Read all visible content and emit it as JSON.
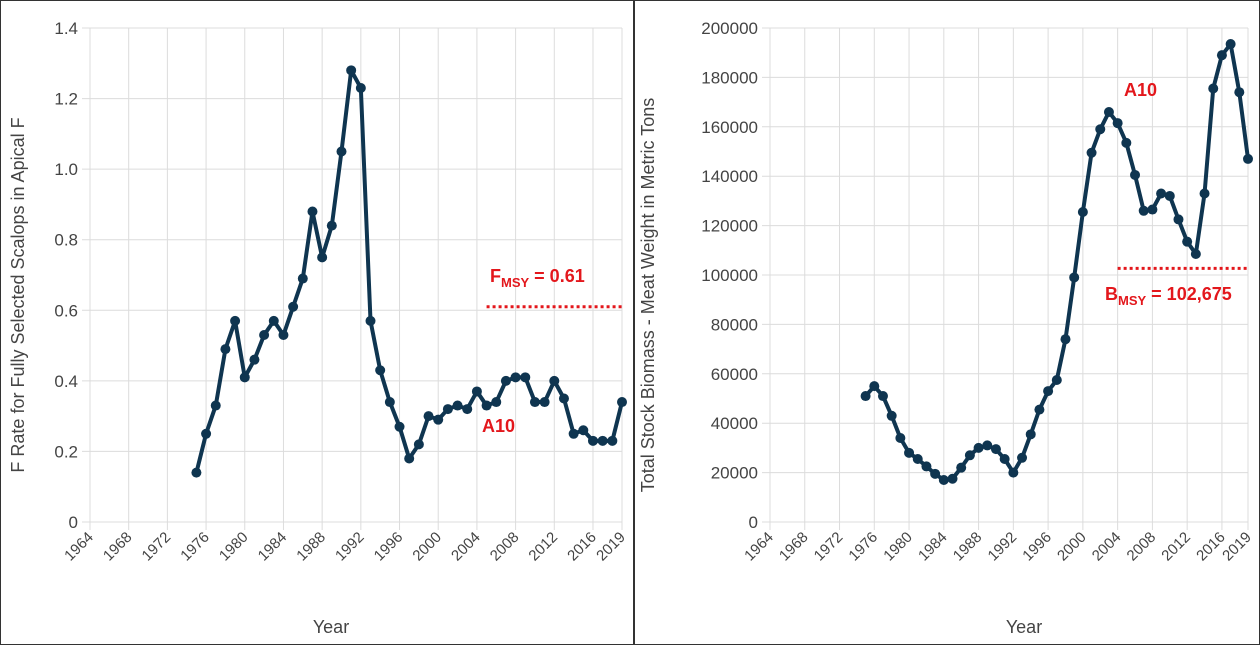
{
  "chart_data": [
    {
      "type": "line",
      "ylabel": "F Rate for Fully Selected Scalops in Apical F",
      "xlabel": "Year",
      "x": [
        1975,
        1976,
        1977,
        1978,
        1979,
        1980,
        1981,
        1982,
        1983,
        1984,
        1985,
        1986,
        1987,
        1988,
        1989,
        1990,
        1991,
        1992,
        1993,
        1994,
        1995,
        1996,
        1997,
        1998,
        1999,
        2000,
        2001,
        2002,
        2003,
        2004,
        2005,
        2006,
        2007,
        2008,
        2009,
        2010,
        2011,
        2012,
        2013,
        2014,
        2015,
        2016,
        2017,
        2018,
        2019
      ],
      "series": [
        {
          "color": "#0f3550",
          "values": [
            0.14,
            0.25,
            0.33,
            0.49,
            0.57,
            0.41,
            0.46,
            0.53,
            0.57,
            0.53,
            0.61,
            0.69,
            0.88,
            0.75,
            0.84,
            1.05,
            1.28,
            1.23,
            0.57,
            0.43,
            0.34,
            0.27,
            0.18,
            0.22,
            0.3,
            0.29,
            0.32,
            0.33,
            0.32,
            0.37,
            0.33,
            0.34,
            0.4,
            0.41,
            0.41,
            0.34,
            0.34,
            0.4,
            0.35,
            0.25,
            0.26,
            0.23,
            0.23,
            0.23,
            0.34
          ]
        }
      ],
      "xlim": [
        1964,
        2019
      ],
      "xticks": [
        1964,
        1968,
        1972,
        1976,
        1980,
        1984,
        1988,
        1992,
        1996,
        2000,
        2004,
        2008,
        2012,
        2016,
        2019
      ],
      "ylim": [
        0,
        1.4
      ],
      "yticks": [
        0,
        0.2,
        0.4,
        0.6,
        0.8,
        {
          "value": 1.0,
          "label": "1.0"
        },
        1.2,
        1.4
      ],
      "grid": true,
      "annotation": "A10",
      "reference_line": {
        "value": 0.61,
        "x": [
          2005,
          2019
        ],
        "color": "#e3171c",
        "symbol": "F",
        "subscript": "MSY",
        "text": " = 0.61"
      }
    },
    {
      "type": "line",
      "ylabel": "Total Stock Biomass - Meat Weight in Metric Tons",
      "xlabel": "Year",
      "x": [
        1975,
        1976,
        1977,
        1978,
        1979,
        1980,
        1981,
        1982,
        1983,
        1984,
        1985,
        1986,
        1987,
        1988,
        1989,
        1990,
        1991,
        1992,
        1993,
        1994,
        1995,
        1996,
        1997,
        1998,
        1999,
        2000,
        2001,
        2002,
        2003,
        2004,
        2005,
        2006,
        2007,
        2008,
        2009,
        2010,
        2011,
        2012,
        2013,
        2014,
        2015,
        2016,
        2017,
        2018,
        2019
      ],
      "series": [
        {
          "color": "#0f3550",
          "values": [
            51000,
            55000,
            51000,
            43000,
            34000,
            28000,
            25500,
            22500,
            19500,
            17000,
            17500,
            22000,
            27000,
            30000,
            31000,
            29500,
            25500,
            20000,
            26000,
            35500,
            45500,
            53000,
            57500,
            74000,
            99000,
            125500,
            149500,
            159000,
            166000,
            161500,
            153500,
            140500,
            126000,
            126500,
            133000,
            132000,
            122500,
            113500,
            108500,
            133000,
            175500,
            189000,
            193500,
            174000,
            147000
          ]
        }
      ],
      "xlim": [
        1964,
        2019
      ],
      "xticks": [
        1964,
        1968,
        1972,
        1976,
        1980,
        1984,
        1988,
        1992,
        1996,
        2000,
        2004,
        2008,
        2012,
        2016,
        2019
      ],
      "ylim": [
        0,
        200000
      ],
      "yticks": [
        0,
        20000,
        40000,
        60000,
        80000,
        100000,
        120000,
        140000,
        160000,
        180000,
        200000
      ],
      "grid": true,
      "annotation": "A10",
      "reference_line": {
        "value": 102675,
        "x": [
          2004,
          2019
        ],
        "color": "#e3171c",
        "symbol": "B",
        "subscript": "MSY",
        "text": " = 102,675"
      }
    }
  ]
}
